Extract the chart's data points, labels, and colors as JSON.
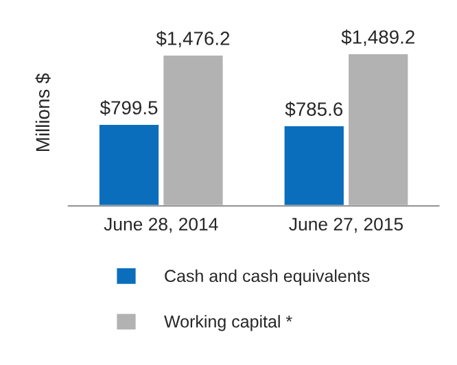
{
  "chart_data": {
    "type": "bar",
    "ylabel": "Millions $",
    "categories": [
      "June 28, 2014",
      "June 27, 2015"
    ],
    "series": [
      {
        "name": "Cash and cash equivalents",
        "color": "#0a6ebd",
        "values": [
          799.5,
          785.6
        ],
        "value_labels": [
          "$799.5",
          "$785.6"
        ]
      },
      {
        "name": "Working capital *",
        "color": "#b2b2b2",
        "values": [
          1476.2,
          1489.2
        ],
        "value_labels": [
          "$1,476.2",
          "$1,489.2"
        ]
      }
    ],
    "legend": "bottom",
    "grid": false
  }
}
